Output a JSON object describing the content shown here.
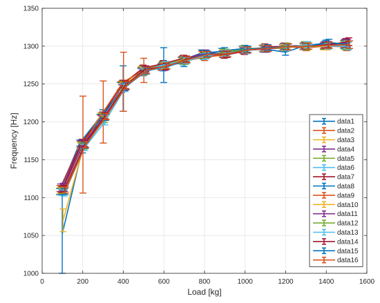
{
  "chart_data": {
    "type": "line",
    "xlabel": "Load [kg]",
    "ylabel": "Frequency [Hz]",
    "xlim": [
      0,
      1600
    ],
    "ylim": [
      1000,
      1350
    ],
    "xticks": [
      "0",
      "200",
      "400",
      "600",
      "800",
      "1000",
      "1200",
      "1400",
      "1600"
    ],
    "yticks": [
      "1000",
      "1050",
      "1100",
      "1150",
      "1200",
      "1250",
      "1300",
      "1350"
    ],
    "grid": true,
    "legend_position": "bottom-right",
    "x_base": [
      100,
      200,
      300,
      400,
      500,
      600,
      700,
      800,
      900,
      1000,
      1100,
      1200,
      1300,
      1400,
      1500
    ],
    "series": [
      {
        "name": "data1",
        "color": "#0072BD",
        "dx": -15,
        "y": [
          1108,
          1172,
          1206,
          1247,
          1267,
          1273,
          1281,
          1291,
          1293,
          1296,
          1297,
          1298,
          1300,
          1300,
          1302
        ],
        "err": [
          4,
          4,
          4,
          5,
          4,
          4,
          4,
          4,
          4,
          4,
          4,
          4,
          4,
          4,
          5
        ]
      },
      {
        "name": "data2",
        "color": "#D95319",
        "dx": -13,
        "y": [
          1112,
          1170,
          1205,
          1248,
          1268,
          1272,
          1282,
          1289,
          1290,
          1295,
          1297,
          1299,
          1299,
          1301,
          1303
        ],
        "err": [
          4,
          4,
          4,
          5,
          4,
          4,
          4,
          4,
          4,
          4,
          4,
          4,
          4,
          4,
          5
        ]
      },
      {
        "name": "data3",
        "color": "#EDB120",
        "dx": -11,
        "y": [
          1109,
          1168,
          1208,
          1246,
          1269,
          1274,
          1280,
          1288,
          1291,
          1296,
          1298,
          1298,
          1300,
          1299,
          1301
        ],
        "err": [
          4,
          4,
          4,
          5,
          4,
          4,
          4,
          4,
          4,
          4,
          4,
          4,
          4,
          4,
          5
        ]
      },
      {
        "name": "data4",
        "color": "#7E2F8E",
        "dx": -9,
        "y": [
          1113,
          1171,
          1204,
          1244,
          1266,
          1275,
          1283,
          1290,
          1289,
          1294,
          1296,
          1300,
          1301,
          1302,
          1304
        ],
        "err": [
          5,
          4,
          4,
          5,
          4,
          4,
          4,
          4,
          4,
          4,
          4,
          4,
          4,
          4,
          5
        ]
      },
      {
        "name": "data5",
        "color": "#77AC30",
        "dx": -7,
        "y": [
          1110,
          1169,
          1207,
          1249,
          1270,
          1276,
          1282,
          1287,
          1292,
          1297,
          1297,
          1297,
          1302,
          1300,
          1300
        ],
        "err": [
          4,
          4,
          4,
          5,
          4,
          4,
          4,
          4,
          4,
          4,
          4,
          4,
          4,
          4,
          5
        ]
      },
      {
        "name": "data6",
        "color": "#4DBEEE",
        "dx": -5,
        "y": [
          1107,
          1167,
          1202,
          1245,
          1267,
          1271,
          1279,
          1286,
          1290,
          1295,
          1298,
          1299,
          1299,
          1303,
          1301
        ],
        "err": [
          4,
          4,
          4,
          5,
          4,
          4,
          4,
          4,
          4,
          4,
          4,
          4,
          4,
          4,
          5
        ]
      },
      {
        "name": "data7",
        "color": "#A2142F",
        "dx": -3,
        "y": [
          1111,
          1173,
          1209,
          1250,
          1271,
          1277,
          1284,
          1288,
          1288,
          1293,
          1299,
          1300,
          1300,
          1301,
          1305
        ],
        "err": [
          4,
          4,
          4,
          5,
          4,
          4,
          4,
          4,
          4,
          4,
          4,
          4,
          4,
          4,
          5
        ]
      },
      {
        "name": "data8",
        "color": "#0072BD",
        "dx": -1,
        "y": [
          1052,
          1165,
          1210,
          1244,
          1265,
          1275,
          1278,
          1290,
          1294,
          1297,
          1296,
          1292,
          1301,
          1304,
          1303
        ],
        "err": [
          52,
          6,
          6,
          30,
          4,
          23,
          5,
          4,
          4,
          4,
          4,
          4,
          4,
          4,
          5
        ]
      },
      {
        "name": "data9",
        "color": "#D95319",
        "dx": 1,
        "y": [
          1110,
          1170,
          1213,
          1253,
          1268,
          1273,
          1281,
          1285,
          1289,
          1294,
          1297,
          1299,
          1298,
          1300,
          1299
        ],
        "err": [
          4,
          64,
          41,
          39,
          16,
          4,
          4,
          4,
          4,
          4,
          4,
          4,
          4,
          4,
          5
        ]
      },
      {
        "name": "data10",
        "color": "#EDB120",
        "dx": 3,
        "y": [
          1070,
          1166,
          1205,
          1247,
          1266,
          1274,
          1283,
          1289,
          1291,
          1296,
          1298,
          1298,
          1301,
          1299,
          1302
        ],
        "err": [
          15,
          4,
          4,
          5,
          4,
          4,
          4,
          4,
          4,
          4,
          4,
          4,
          4,
          4,
          5
        ]
      },
      {
        "name": "data11",
        "color": "#7E2F8E",
        "dx": 5,
        "y": [
          1114,
          1172,
          1206,
          1246,
          1269,
          1272,
          1282,
          1291,
          1290,
          1295,
          1296,
          1299,
          1300,
          1302,
          1304
        ],
        "err": [
          5,
          4,
          4,
          5,
          4,
          4,
          4,
          4,
          4,
          4,
          4,
          4,
          4,
          4,
          5
        ]
      },
      {
        "name": "data12",
        "color": "#77AC30",
        "dx": 7,
        "y": [
          1109,
          1168,
          1203,
          1248,
          1267,
          1275,
          1280,
          1288,
          1292,
          1296,
          1297,
          1300,
          1299,
          1301,
          1301
        ],
        "err": [
          4,
          4,
          4,
          5,
          4,
          4,
          4,
          4,
          4,
          4,
          4,
          4,
          4,
          4,
          5
        ]
      },
      {
        "name": "data13",
        "color": "#4DBEEE",
        "dx": 9,
        "y": [
          1106,
          1166,
          1200,
          1245,
          1268,
          1276,
          1281,
          1287,
          1291,
          1294,
          1298,
          1298,
          1302,
          1300,
          1300
        ],
        "err": [
          4,
          4,
          4,
          5,
          4,
          4,
          4,
          4,
          4,
          4,
          4,
          4,
          4,
          4,
          5
        ]
      },
      {
        "name": "data14",
        "color": "#A2142F",
        "dx": 11,
        "y": [
          1112,
          1171,
          1208,
          1249,
          1270,
          1273,
          1283,
          1289,
          1289,
          1295,
          1297,
          1299,
          1300,
          1302,
          1306
        ],
        "err": [
          4,
          4,
          4,
          5,
          4,
          4,
          4,
          4,
          4,
          4,
          4,
          4,
          4,
          4,
          5
        ]
      },
      {
        "name": "data15",
        "color": "#0072BD",
        "dx": 13,
        "y": [
          1108,
          1169,
          1206,
          1247,
          1267,
          1274,
          1282,
          1290,
          1290,
          1296,
          1298,
          1299,
          1300,
          1305,
          1302
        ],
        "err": [
          4,
          4,
          4,
          5,
          4,
          4,
          4,
          4,
          4,
          4,
          4,
          4,
          4,
          4,
          5
        ]
      },
      {
        "name": "data16",
        "color": "#D95319",
        "dx": 15,
        "y": [
          1110,
          1170,
          1207,
          1248,
          1268,
          1274,
          1282,
          1289,
          1290,
          1295,
          1297,
          1299,
          1300,
          1301,
          1302
        ],
        "err": [
          4,
          4,
          4,
          5,
          4,
          4,
          4,
          4,
          4,
          4,
          4,
          4,
          4,
          4,
          5
        ]
      }
    ]
  }
}
